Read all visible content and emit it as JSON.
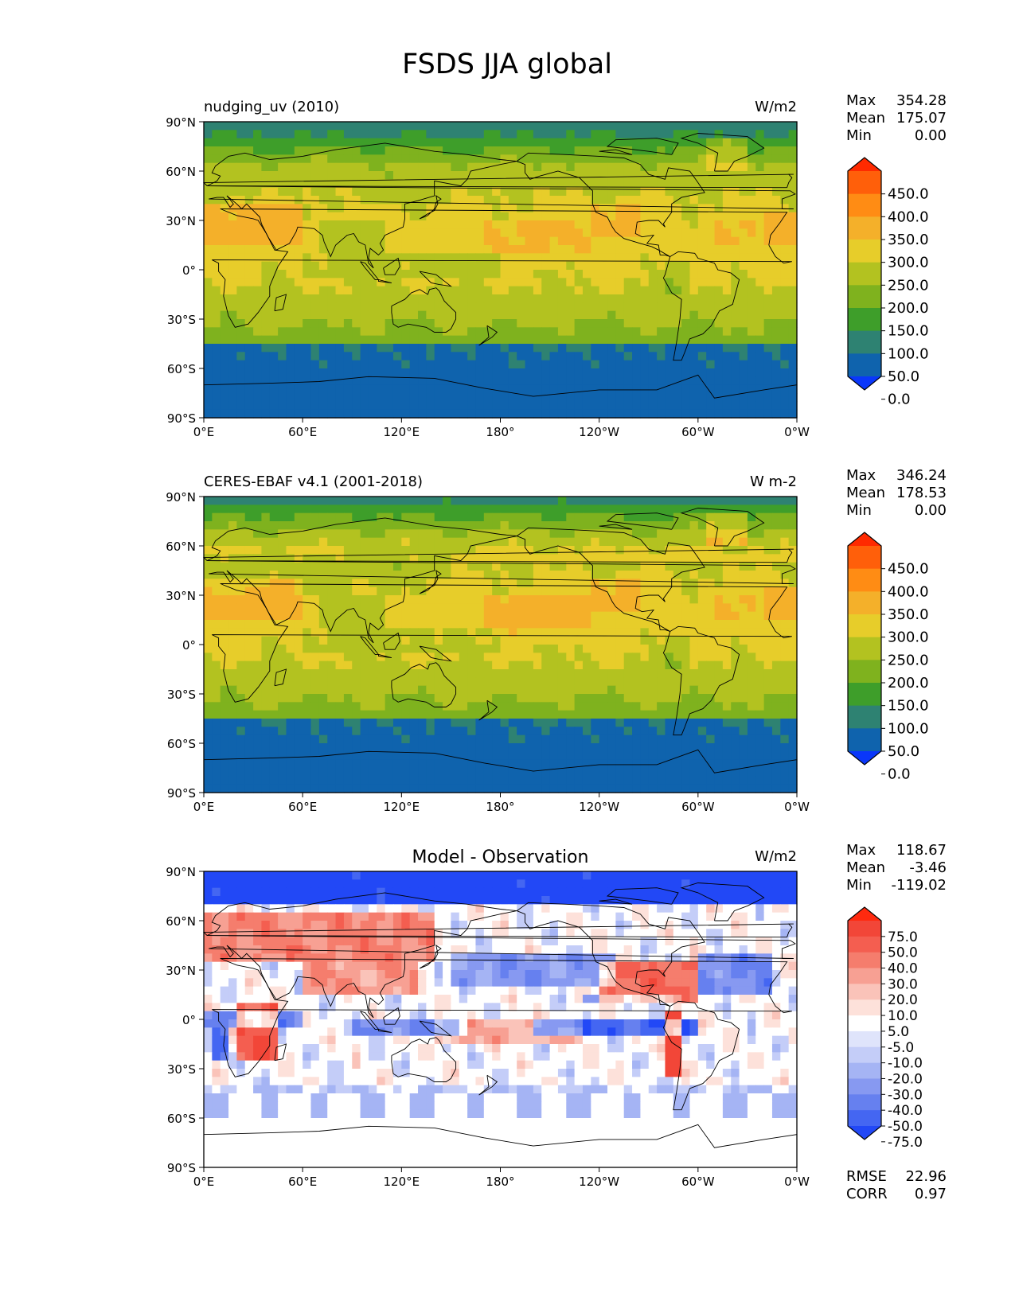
{
  "figure_title": "FSDS JJA global",
  "chart_data": [
    {
      "type": "heatmap",
      "title_left": "nudging_uv (2010)",
      "title_center": "",
      "units": "W/m2",
      "stats": [
        {
          "label": "Max",
          "value": "354.28"
        },
        {
          "label": "Mean",
          "value": "175.07"
        },
        {
          "label": "Min",
          "value": "0.00"
        }
      ],
      "field": "model",
      "colorbar": {
        "labels": [
          "450.0",
          "400.0",
          "350.0",
          "300.0",
          "250.0",
          "200.0",
          "150.0",
          "100.0",
          "50.0",
          "0.0"
        ],
        "colors": [
          "#ff2a00",
          "#ff5f0a",
          "#ff8c14",
          "#f4b02a",
          "#e7cd2a",
          "#b3c220",
          "#7fb21e",
          "#3e9e2a",
          "#2e8272",
          "#0f63ad",
          "#0a37fa"
        ]
      }
    },
    {
      "type": "heatmap",
      "title_left": "CERES-EBAF v4.1 (2001-2018)",
      "title_center": "",
      "units": "W m-2",
      "stats": [
        {
          "label": "Max",
          "value": "346.24"
        },
        {
          "label": "Mean",
          "value": "178.53"
        },
        {
          "label": "Min",
          "value": "0.00"
        }
      ],
      "field": "obs",
      "colorbar": {
        "labels": [
          "450.0",
          "400.0",
          "350.0",
          "300.0",
          "250.0",
          "200.0",
          "150.0",
          "100.0",
          "50.0",
          "0.0"
        ],
        "colors": [
          "#ff2a00",
          "#ff5f0a",
          "#ff8c14",
          "#f4b02a",
          "#e7cd2a",
          "#b3c220",
          "#7fb21e",
          "#3e9e2a",
          "#2e8272",
          "#0f63ad",
          "#0a37fa"
        ]
      }
    },
    {
      "type": "heatmap",
      "title_left": "",
      "title_center": "Model - Observation",
      "units": "W/m2",
      "stats": [
        {
          "label": "Max",
          "value": "118.67"
        },
        {
          "label": "Mean",
          "value": "-3.46"
        },
        {
          "label": "Min",
          "value": "-119.02"
        }
      ],
      "extra_stats": [
        {
          "label": "RMSE",
          "value": "22.96"
        },
        {
          "label": "CORR",
          "value": "0.97"
        }
      ],
      "field": "diff",
      "colorbar": {
        "labels": [
          "75.0",
          "50.0",
          "40.0",
          "30.0",
          "20.0",
          "10.0",
          "5.0",
          "-5.0",
          "-10.0",
          "-20.0",
          "-30.0",
          "-40.0",
          "-50.0",
          "-75.0"
        ],
        "colors": [
          "#ff2a0f",
          "#f24638",
          "#f45e50",
          "#f57d6d",
          "#f7a093",
          "#fac3b9",
          "#fde1da",
          "#ffffff",
          "#dfe4fb",
          "#c4cdf8",
          "#a5b4f4",
          "#8799f1",
          "#6680ef",
          "#4466f2",
          "#2248f6"
        ]
      }
    }
  ],
  "axes": {
    "lat_ticks": [
      "90°N",
      "60°N",
      "30°N",
      "0°",
      "30°S",
      "60°S",
      "90°S"
    ],
    "lon_ticks": [
      "0°E",
      "60°E",
      "120°E",
      "180°",
      "120°W",
      "60°W",
      "0°W"
    ]
  }
}
